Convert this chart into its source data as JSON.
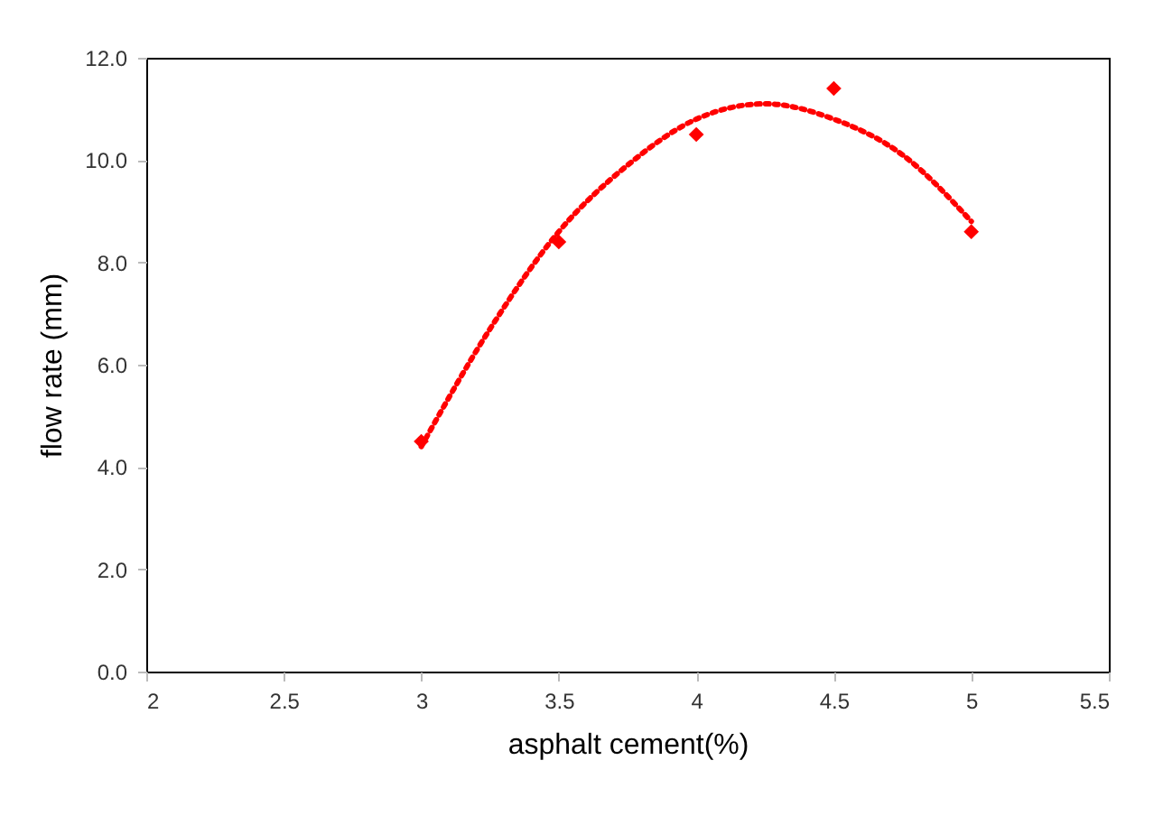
{
  "chart_data": {
    "type": "scatter",
    "xlabel": "asphalt cement(%)",
    "ylabel": "flow rate (mm)",
    "x": [
      3,
      3.5,
      4,
      4.5,
      5
    ],
    "series": [
      {
        "color": "#ff0000",
        "marker": "diamond",
        "values": [
          4.5,
          8.4,
          10.5,
          11.4,
          8.6
        ]
      },
      {
        "type": "line",
        "color": "#ff0000",
        "marker": "none",
        "line_style": "dotted",
        "x": [
          3,
          3.25,
          3.5,
          3.75,
          4,
          4.25,
          4.5,
          4.75,
          5
        ],
        "values": [
          4.4,
          6.7,
          8.6,
          9.9,
          10.8,
          11.1,
          10.8,
          10.1,
          8.8
        ]
      }
    ],
    "grid": false,
    "xlim": [
      2,
      5.5
    ],
    "xticks": [
      2,
      2.5,
      3,
      3.5,
      4,
      4.5,
      5,
      5.5
    ],
    "ylim": [
      0,
      12
    ],
    "yticks": [
      {
        "value": 0,
        "label": "0.0"
      },
      {
        "value": 2,
        "label": "2.0"
      },
      {
        "value": 4,
        "label": "4.0"
      },
      {
        "value": 6,
        "label": "6.0"
      },
      {
        "value": 8,
        "label": "8.0"
      },
      {
        "value": 10,
        "label": "10.0"
      },
      {
        "value": 12,
        "label": "12.0"
      }
    ]
  }
}
